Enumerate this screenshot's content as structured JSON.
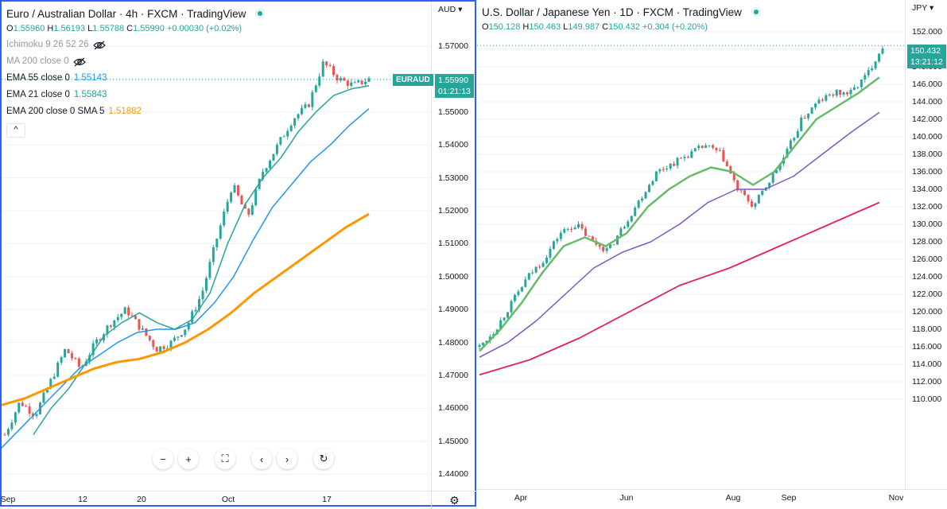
{
  "left": {
    "title": "Euro / Australian Dollar · 4h · FXCM · TradingView",
    "ohlc": {
      "o_label": "O",
      "o": "1.55960",
      "h_label": "H",
      "h": "1.56193",
      "l_label": "L",
      "l": "1.55788",
      "c_label": "C",
      "c": "1.55990",
      "chg": "+0.00030 (+0.02%)"
    },
    "indicators": [
      {
        "label": "Ichimoku 9 26 52 26",
        "value": "",
        "muted": true,
        "hidden": true
      },
      {
        "label": "MA 200 close 0",
        "value": "",
        "muted": true,
        "hidden": true
      },
      {
        "label": "EMA 55 close 0",
        "value": "1.55143",
        "color": "#2196f3"
      },
      {
        "label": "EMA 21 close 0",
        "value": "1.55843",
        "color": "#26a69a"
      },
      {
        "label": "EMA 200 close 0 SMA 5",
        "value": "1.51882",
        "color": "#ff9800"
      }
    ],
    "collapse_glyph": "^",
    "currency": "AUD",
    "y_ticks": [
      "1.57000",
      "1.56000",
      "1.55000",
      "1.54000",
      "1.53000",
      "1.52000",
      "1.51000",
      "1.50000",
      "1.49000",
      "1.48000",
      "1.47000",
      "1.46000",
      "1.45000",
      "1.44000"
    ],
    "x_ticks": [
      "Sep",
      "12",
      "20",
      "Oct",
      "17"
    ],
    "symbol_tag": "EURAUD",
    "price": "1.55990",
    "countdown": "01:21:13",
    "nav_buttons": [
      "−",
      "+",
      "⛶",
      "‹",
      "›",
      "↻"
    ],
    "settings_glyph": "⚙"
  },
  "right": {
    "title": "U.S. Dollar / Japanese Yen · 1D · FXCM · TradingView",
    "ohlc": {
      "o_label": "O",
      "o": "150.128",
      "h_label": "H",
      "h": "150.463",
      "l_label": "L",
      "l": "149.987",
      "c_label": "C",
      "c": "150.432",
      "chg": "+0.304 (+0.20%)"
    },
    "currency": "JPY",
    "y_ticks": [
      "152.000",
      "150.000",
      "148.000",
      "146.000",
      "144.000",
      "142.000",
      "140.000",
      "138.000",
      "136.000",
      "134.000",
      "132.000",
      "130.000",
      "128.000",
      "126.000",
      "124.000",
      "122.000",
      "120.000",
      "118.000",
      "116.000",
      "114.000",
      "112.000",
      "110.000"
    ],
    "x_ticks": [
      "Apr",
      "Jun",
      "Aug",
      "Sep",
      "Nov"
    ],
    "price": "150.432",
    "countdown": "13:21:12"
  },
  "colors": {
    "up": "#26a69a",
    "down": "#ef5350",
    "ema55": "#2196f3",
    "ema21": "#26a69a",
    "ema200": "#ff9800",
    "usd_fast": "#66bb6a",
    "usd_mid": "#7e57c2",
    "usd_slow": "#e91e63",
    "accent": "#2962ff"
  },
  "chart_data": [
    {
      "type": "candlestick",
      "title": "Euro / Australian Dollar · 4h · FXCM",
      "ylim": [
        1.44,
        1.575
      ],
      "x_labels": [
        "Sep",
        "12",
        "20",
        "Oct",
        "17"
      ],
      "close_path": [
        1.452,
        1.462,
        1.458,
        1.468,
        1.478,
        1.472,
        1.48,
        1.486,
        1.49,
        1.484,
        1.478,
        1.48,
        1.485,
        1.495,
        1.512,
        1.528,
        1.518,
        1.532,
        1.54,
        1.548,
        1.552,
        1.565,
        1.56,
        1.558,
        1.56
      ],
      "series": [
        {
          "name": "EMA 55",
          "values": [
            1.448,
            1.454,
            1.46,
            1.466,
            1.472,
            1.476,
            1.48,
            1.483,
            1.484,
            1.484,
            1.486,
            1.492,
            1.5,
            1.511,
            1.521,
            1.528,
            1.535,
            1.54,
            1.546,
            1.551
          ]
        },
        {
          "name": "EMA 21",
          "values": [
            1.452,
            1.46,
            1.466,
            1.474,
            1.482,
            1.486,
            1.489,
            1.486,
            1.484,
            1.487,
            1.495,
            1.51,
            1.522,
            1.53,
            1.536,
            1.544,
            1.55,
            1.555,
            1.557,
            1.558
          ]
        },
        {
          "name": "EMA 200 SMA 5",
          "values": [
            1.461,
            1.463,
            1.466,
            1.469,
            1.472,
            1.474,
            1.475,
            1.477,
            1.48,
            1.484,
            1.489,
            1.495,
            1.5,
            1.505,
            1.51,
            1.515,
            1.519
          ]
        }
      ]
    },
    {
      "type": "candlestick",
      "title": "U.S. Dollar / Japanese Yen · 1D · FXCM",
      "ylim": [
        109,
        153
      ],
      "x_labels": [
        "Apr",
        "Jun",
        "Aug",
        "Sep",
        "Nov"
      ],
      "close_path": [
        116,
        118,
        121,
        124,
        126,
        129,
        130,
        128,
        127,
        130,
        133,
        136,
        137,
        138,
        139,
        138,
        134,
        132,
        135,
        138,
        142,
        144,
        145,
        145,
        147,
        150.4
      ],
      "series": [
        {
          "name": "EMA fast",
          "values": [
            115.5,
            118,
            121,
            124.5,
            127.5,
            128.5,
            127.5,
            129,
            132,
            134,
            135.5,
            136.5,
            136,
            134.5,
            136,
            139,
            142,
            143.5,
            145,
            146.8
          ]
        },
        {
          "name": "EMA mid",
          "values": [
            114.8,
            116.5,
            119,
            122,
            125,
            126.8,
            128,
            130,
            132.5,
            134,
            134,
            135.5,
            138,
            140.5,
            142.8
          ]
        },
        {
          "name": "EMA slow",
          "values": [
            112.8,
            114.5,
            117,
            120,
            123,
            125,
            127.5,
            130,
            132.5
          ]
        }
      ]
    }
  ]
}
